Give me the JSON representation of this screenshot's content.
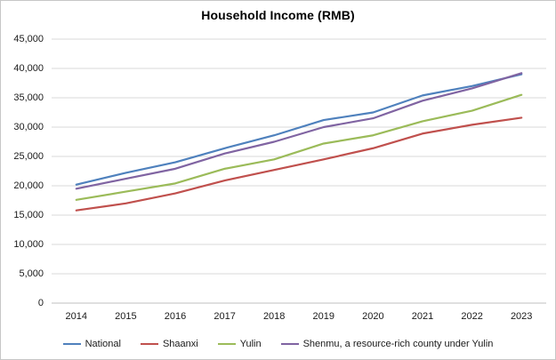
{
  "chart_data": {
    "type": "line",
    "title": "Household Income (RMB)",
    "categories": [
      "2014",
      "2015",
      "2016",
      "2017",
      "2018",
      "2019",
      "2020",
      "2021",
      "2022",
      "2023"
    ],
    "series": [
      {
        "name": "National",
        "color": "#4F81BD",
        "values": [
          20200,
          22200,
          24000,
          26400,
          28600,
          31200,
          32500,
          35400,
          37000,
          39000
        ]
      },
      {
        "name": "Shaanxi",
        "color": "#C0504D",
        "values": [
          15800,
          17000,
          18700,
          20900,
          22700,
          24500,
          26400,
          28900,
          30400,
          31600
        ]
      },
      {
        "name": "Yulin",
        "color": "#9BBB59",
        "values": [
          17600,
          19000,
          20400,
          22900,
          24500,
          27200,
          28600,
          31000,
          32800,
          35500
        ]
      },
      {
        "name": "Shenmu, a resource-rich county under Yulin",
        "color": "#8064A2",
        "values": [
          19500,
          21200,
          22900,
          25500,
          27500,
          30000,
          31500,
          34500,
          36600,
          39200
        ]
      }
    ],
    "xlabel": "",
    "ylabel": "",
    "ylim": [
      0,
      45000
    ],
    "ytick_values": [
      0,
      5000,
      10000,
      15000,
      20000,
      25000,
      30000,
      35000,
      40000,
      45000
    ],
    "ytick_labels": [
      "0",
      "5,000",
      "10,000",
      "15,000",
      "20,000",
      "25,000",
      "30,000",
      "35,000",
      "40,000",
      "45,000"
    ],
    "grid": "horizontal",
    "gridline_color": "#D9D9D9",
    "axis_line_color": "#BFBFBF",
    "legend_position": "bottom"
  }
}
